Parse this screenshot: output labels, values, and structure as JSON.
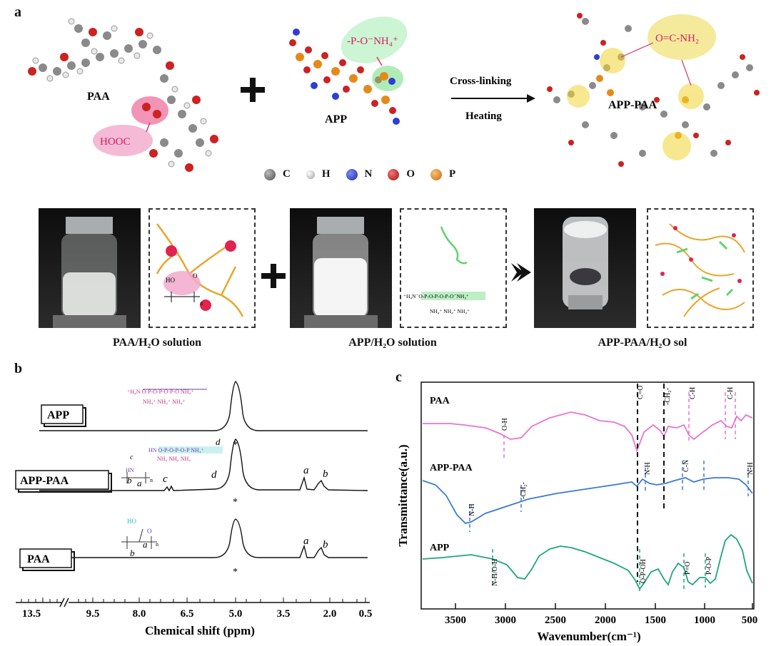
{
  "panel_a": {
    "letter": "a",
    "paa_label": "PAA",
    "app_label": "APP",
    "apppaa_label": "APP-PAA",
    "hooc_label": "HOOC",
    "po_label": "-P-O⁻NH₄⁺",
    "amide_label": "O=C-NH₂",
    "arrow_top": "Cross-linking",
    "arrow_bottom": "Heating",
    "legend": [
      {
        "symbol": "C",
        "color": "#6d6d6d"
      },
      {
        "symbol": "H",
        "color": "#e9e9e9"
      },
      {
        "symbol": "N",
        "color": "#2d3fd1"
      },
      {
        "symbol": "O",
        "color": "#d11f1f"
      },
      {
        "symbol": "P",
        "color": "#e58a1a"
      }
    ],
    "captions": {
      "paa_solution": "PAA/H₂O solution",
      "app_solution": "APP/H₂O solution",
      "sol": "APP-PAA/H₂O sol"
    },
    "schematic_text": {
      "ho": "HO",
      "o": "O",
      "n": "n",
      "chain": "⁺H₄N⁻O-P-O-P-O-P-O⁻NH₄⁺",
      "nh4_row": "NH₄⁺  NH₄⁺  NH₄⁺"
    }
  },
  "panel_b": {
    "letter": "b",
    "xlabel": "Chemical shift (ppm)",
    "ticks": [
      "13.5",
      "9.5",
      "8.0",
      "6.5",
      "5.0",
      "3.5",
      "2.0",
      "0.5"
    ],
    "spectra": [
      {
        "label": "APP"
      },
      {
        "label": "APP-PAA",
        "peaks": [
          "c",
          "d",
          "a",
          "b"
        ]
      },
      {
        "label": "PAA",
        "peaks": [
          "a",
          "b"
        ]
      }
    ],
    "star": "*",
    "structure_labels": {
      "c": "c",
      "d": "d",
      "a": "a",
      "b": "b",
      "n": "n",
      "ho": "HO",
      "hn": "HN",
      "o": "O"
    }
  },
  "panel_c": {
    "letter": "c",
    "xlabel": "Wavenumber(cm⁻¹)",
    "ylabel": "Transmittance(a.u.)",
    "ticks": [
      "3500",
      "3000",
      "2500",
      "2000",
      "1500",
      "1000",
      "500"
    ],
    "series_labels": [
      "PAA",
      "APP-PAA",
      "APP"
    ],
    "band_labels": {
      "paa": [
        "O-H",
        "C=O",
        "-CH₂-",
        "C-H",
        "C-H"
      ],
      "apppaa": [
        "N-H",
        "-CH₂-",
        "N-H",
        "C-N",
        "N-H"
      ],
      "app": [
        "N-H/O-H",
        "O-P-OH",
        "P=O",
        "P-O-P"
      ]
    },
    "colors": {
      "paa": "#e874d0",
      "apppaa": "#3b7ad6",
      "app": "#1fa57d"
    }
  }
}
